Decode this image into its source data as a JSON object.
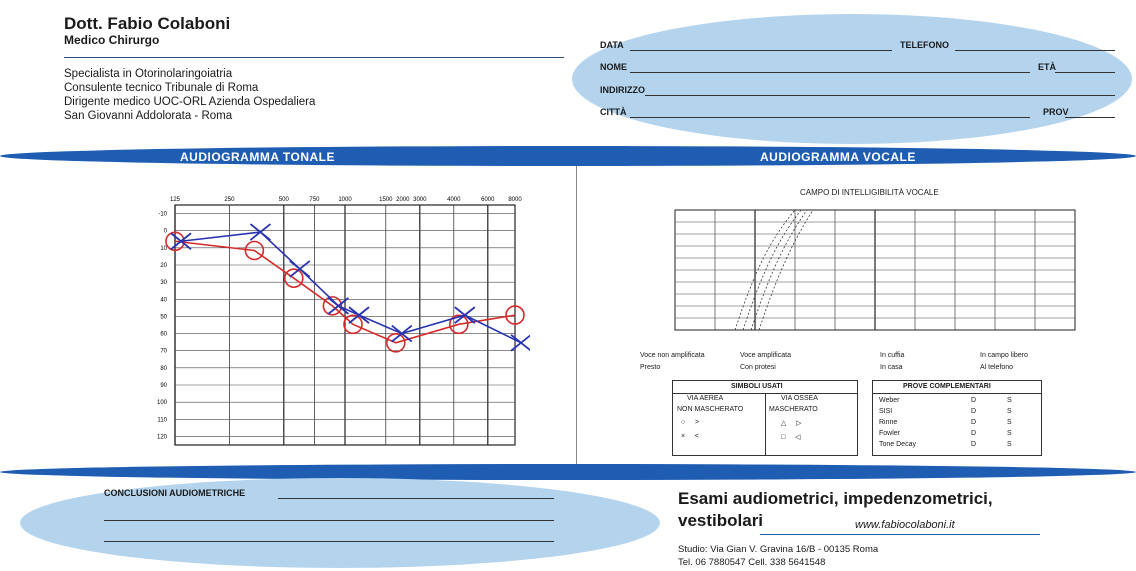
{
  "header": {
    "name": "Dott. Fabio Colaboni",
    "role": "Medico Chirurgo",
    "credentials": [
      "Specialista in Otorinolaringoiatria",
      "Consulente tecnico Tribunale di Roma",
      "Dirigente medico UOC-ORL Azienda Ospedaliera",
      "San Giovanni Addolorata - Roma"
    ]
  },
  "patient_form": {
    "data_label": "DATA",
    "telefono_label": "TELEFONO",
    "nome_label": "NOME",
    "eta_label": "ETÀ",
    "indirizzo_label": "INDIRIZZO",
    "citta_label": "CITTÀ",
    "prov_label": "PROV"
  },
  "tonal": {
    "title": "AUDIOGRAMMA TONALE",
    "freq_labels": [
      "125",
      "250",
      "500",
      "750",
      "1000",
      "1500",
      "2000",
      "3000",
      "4000",
      "6000",
      "8000"
    ],
    "db_labels": [
      "-10",
      "0",
      "10",
      "20",
      "30",
      "40",
      "50",
      "60",
      "70",
      "80",
      "90",
      "100",
      "110",
      "120"
    ],
    "red_series": [
      5,
      10,
      25,
      40,
      50,
      60,
      50,
      45
    ],
    "blue_series": [
      5,
      0,
      20,
      40,
      45,
      55,
      45,
      60
    ]
  },
  "vocal": {
    "title": "AUDIOGRAMMA VOCALE",
    "subtitle": "CAMPO DI INTELLIGIBILITÀ VOCALE",
    "legend": [
      "Voce non amplificata",
      "Voce amplificata",
      "In cuffia",
      "In campo libero",
      "Presto",
      "Con protesi",
      "In casa",
      "Al telefono"
    ]
  },
  "simboli": {
    "title": "SIMBOLI USATI",
    "headers": [
      "VIA AEREA",
      "VIA OSSEA"
    ],
    "sub": [
      "NON MASCHERATO",
      "MASCHERATO"
    ]
  },
  "prove": {
    "title": "PROVE COMPLEMENTARI",
    "rows": [
      "Weber",
      "SISI",
      "Rinne",
      "Fowler",
      "Tone Decay"
    ],
    "col1": [
      "D",
      "D",
      "D",
      "D",
      "D"
    ],
    "col2": [
      "S",
      "S",
      "S",
      "S",
      "S"
    ]
  },
  "footer": {
    "conclusioni_label": "CONCLUSIONI AUDIOMETRICHE",
    "exam_title_line1": "Esami audiometrici, impedenzometrici,",
    "exam_title_line2": "vestibolari",
    "website": "www.fabiocolaboni.it",
    "address_line1": "Studio: Via Gian V. Gravina 16/B - 00135 Roma",
    "address_line2": "Tel. 06 7880547 Cell. 338 5641548"
  },
  "colors": {
    "band_blue": "#1f5db3",
    "oval_blue": "#b4d4ee",
    "series_red": "#d62a2a",
    "series_blue": "#2833b0"
  }
}
